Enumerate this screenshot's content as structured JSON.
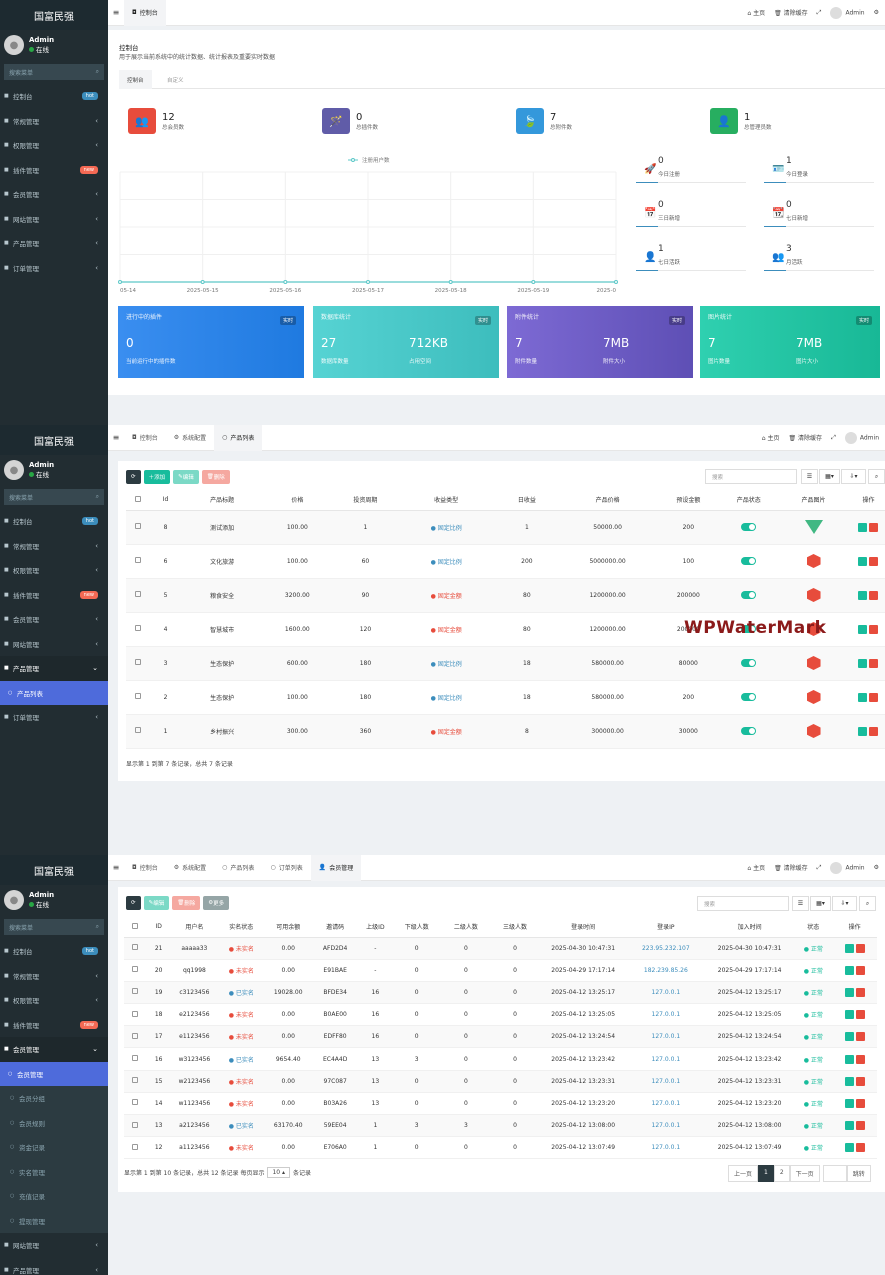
{
  "brand": "国富民强",
  "user": {
    "name": "Admin",
    "status": "在线"
  },
  "search_placeholder": "搜索菜单",
  "menu1": [
    {
      "label": "控制台",
      "badge": "hot"
    },
    {
      "label": "常规管理"
    },
    {
      "label": "权限管理"
    },
    {
      "label": "插件管理",
      "badge": "new"
    },
    {
      "label": "会员管理"
    },
    {
      "label": "网站管理"
    },
    {
      "label": "产品管理"
    },
    {
      "label": "订单管理"
    }
  ],
  "topbar": {
    "home": "主页",
    "clear": "清除缓存",
    "admin": "Admin"
  },
  "tabs1": [
    "控制台"
  ],
  "dash": {
    "title": "控制台",
    "desc": "用于展示当前系统中的统计数据、统计报表及重要实时数据",
    "subtabs": [
      "控制台",
      "自定义"
    ],
    "stats": [
      {
        "num": "12",
        "label": "总会员数",
        "color": "#e74c3c",
        "icon": "👥"
      },
      {
        "num": "0",
        "label": "总插件数",
        "color": "#605ca8",
        "icon": "🪄"
      },
      {
        "num": "7",
        "label": "总附件数",
        "color": "#3498db",
        "icon": "🍃"
      },
      {
        "num": "1",
        "label": "总管理员数",
        "color": "#27ae60",
        "icon": "👤"
      }
    ],
    "legend": "注册用户数",
    "xticks": [
      "05-14",
      "2025-05-15",
      "2025-05-16",
      "2025-05-17",
      "2025-05-18",
      "2025-05-19",
      "2025-0"
    ],
    "minis": [
      {
        "num": "0",
        "label": "今日注册",
        "icon": "🚀"
      },
      {
        "num": "1",
        "label": "今日登录",
        "icon": "🪪"
      },
      {
        "num": "0",
        "label": "三日新增",
        "icon": "📅"
      },
      {
        "num": "0",
        "label": "七日新增",
        "icon": "📆"
      },
      {
        "num": "1",
        "label": "七日活跃",
        "icon": "👤"
      },
      {
        "num": "3",
        "label": "月活跃",
        "icon": "👥"
      }
    ],
    "boxes": [
      {
        "title": "进行中的插件",
        "badge": "实时",
        "v1": "0",
        "l1": "当前运行中的插件数",
        "v2": "",
        "l2": ""
      },
      {
        "title": "数据库统计",
        "badge": "实时",
        "v1": "27",
        "l1": "数据库数量",
        "v2": "712KB",
        "l2": "占用空间"
      },
      {
        "title": "附件统计",
        "badge": "实时",
        "v1": "7",
        "l1": "附件数量",
        "v2": "7MB",
        "l2": "附件大小"
      },
      {
        "title": "图片统计",
        "badge": "实时",
        "v1": "7",
        "l1": "图片数量",
        "v2": "7MB",
        "l2": "图片大小"
      }
    ]
  },
  "menu2": [
    {
      "label": "控制台",
      "badge": "hot"
    },
    {
      "label": "常规管理"
    },
    {
      "label": "权限管理"
    },
    {
      "label": "插件管理",
      "badge": "new"
    },
    {
      "label": "会员管理"
    },
    {
      "label": "网站管理"
    },
    {
      "label": "产品管理"
    },
    {
      "label": "产品列表"
    },
    {
      "label": "订单管理"
    }
  ],
  "tabs2": [
    "控制台",
    "系统配置",
    "产品列表"
  ],
  "toolbar2": {
    "add": "添加",
    "edit": "编辑",
    "del": "删除",
    "search": "搜索"
  },
  "products": {
    "headers": [
      "Id",
      "产品标题",
      "价格",
      "投资周期",
      "收益类型",
      "日收益",
      "产品价格",
      "预设金额",
      "产品状态",
      "产品图片",
      "操作"
    ],
    "rows": [
      [
        "8",
        "测试添加",
        "100.00",
        "1",
        "固定比例",
        "1",
        "50000.00",
        "200",
        "vue"
      ],
      [
        "6",
        "文化旅游",
        "100.00",
        "60",
        "固定比例",
        "200",
        "5000000.00",
        "100",
        "cube"
      ],
      [
        "5",
        "粮食安全",
        "3200.00",
        "90",
        "固定金额",
        "80",
        "1200000.00",
        "200000",
        "cube"
      ],
      [
        "4",
        "智慧城市",
        "1600.00",
        "120",
        "固定金额",
        "80",
        "1200000.00",
        "200000",
        "cube"
      ],
      [
        "3",
        "生态保护",
        "600.00",
        "180",
        "固定比例",
        "18",
        "580000.00",
        "80000",
        "cube"
      ],
      [
        "2",
        "生态保护",
        "100.00",
        "180",
        "固定比例",
        "18",
        "580000.00",
        "200",
        "cube"
      ],
      [
        "1",
        "乡村振兴",
        "300.00",
        "360",
        "固定金额",
        "8",
        "300000.00",
        "30000",
        "cube"
      ]
    ],
    "footer": "显示第 1 到第 7 条记录，总共 7 条记录"
  },
  "watermark": "WPWaterMark",
  "menu3": [
    {
      "label": "控制台",
      "badge": "hot"
    },
    {
      "label": "常规管理"
    },
    {
      "label": "权限管理"
    },
    {
      "label": "插件管理",
      "badge": "new"
    },
    {
      "label": "会员管理"
    },
    {
      "label": "会员管理"
    },
    {
      "label": "会员分组"
    },
    {
      "label": "会员规则"
    },
    {
      "label": "资金记录"
    },
    {
      "label": "实名管理"
    },
    {
      "label": "充值记录"
    },
    {
      "label": "提现管理"
    },
    {
      "label": "网站管理"
    },
    {
      "label": "产品管理"
    }
  ],
  "tabs3": [
    "控制台",
    "系统配置",
    "产品列表",
    "订单列表",
    "会员管理"
  ],
  "toolbar3": {
    "edit": "编辑",
    "del": "删除",
    "more": "更多",
    "search": "搜索"
  },
  "members": {
    "headers": [
      "ID",
      "用户名",
      "实名状态",
      "可用余额",
      "邀请码",
      "上级ID",
      "下级人数",
      "二级人数",
      "三级人数",
      "登录时间",
      "登录IP",
      "加入时间",
      "状态",
      "操作"
    ],
    "rows": [
      [
        "21",
        "aaaaa33",
        "未实名",
        "0.00",
        "AFD2D4",
        "-",
        "0",
        "0",
        "0",
        "2025-04-30 10:47:31",
        "223.95.232.107",
        "2025-04-30 10:47:31",
        "正常"
      ],
      [
        "20",
        "qq1998",
        "未实名",
        "0.00",
        "E91BAE",
        "-",
        "0",
        "0",
        "0",
        "2025-04-29 17:17:14",
        "182.239.85.26",
        "2025-04-29 17:17:14",
        "正常"
      ],
      [
        "19",
        "c3123456",
        "已实名",
        "19028.00",
        "BFDE34",
        "16",
        "0",
        "0",
        "0",
        "2025-04-12 13:25:17",
        "127.0.0.1",
        "2025-04-12 13:25:17",
        "正常"
      ],
      [
        "18",
        "e2123456",
        "未实名",
        "0.00",
        "B0AE00",
        "16",
        "0",
        "0",
        "0",
        "2025-04-12 13:25:05",
        "127.0.0.1",
        "2025-04-12 13:25:05",
        "正常"
      ],
      [
        "17",
        "e1123456",
        "未实名",
        "0.00",
        "EDFF80",
        "16",
        "0",
        "0",
        "0",
        "2025-04-12 13:24:54",
        "127.0.0.1",
        "2025-04-12 13:24:54",
        "正常"
      ],
      [
        "16",
        "w3123456",
        "已实名",
        "9654.40",
        "EC4A4D",
        "13",
        "3",
        "0",
        "0",
        "2025-04-12 13:23:42",
        "127.0.0.1",
        "2025-04-12 13:23:42",
        "正常"
      ],
      [
        "15",
        "w2123456",
        "未实名",
        "0.00",
        "97C087",
        "13",
        "0",
        "0",
        "0",
        "2025-04-12 13:23:31",
        "127.0.0.1",
        "2025-04-12 13:23:31",
        "正常"
      ],
      [
        "14",
        "w1123456",
        "未实名",
        "0.00",
        "B03A26",
        "13",
        "0",
        "0",
        "0",
        "2025-04-12 13:23:20",
        "127.0.0.1",
        "2025-04-12 13:23:20",
        "正常"
      ],
      [
        "13",
        "a2123456",
        "已实名",
        "63170.40",
        "59EE04",
        "1",
        "3",
        "3",
        "0",
        "2025-04-12 13:08:00",
        "127.0.0.1",
        "2025-04-12 13:08:00",
        "正常"
      ],
      [
        "12",
        "a1123456",
        "未实名",
        "0.00",
        "E706A0",
        "1",
        "0",
        "0",
        "0",
        "2025-04-12 13:07:49",
        "127.0.0.1",
        "2025-04-12 13:07:49",
        "正常"
      ]
    ],
    "footer_a": "显示第 1 到第 10 条记录，总共 12 条记录 每页显示",
    "page_size": "10",
    "footer_b": "条记录",
    "pager": [
      "上一页",
      "1",
      "2",
      "下一页"
    ],
    "jump": "跳转"
  }
}
